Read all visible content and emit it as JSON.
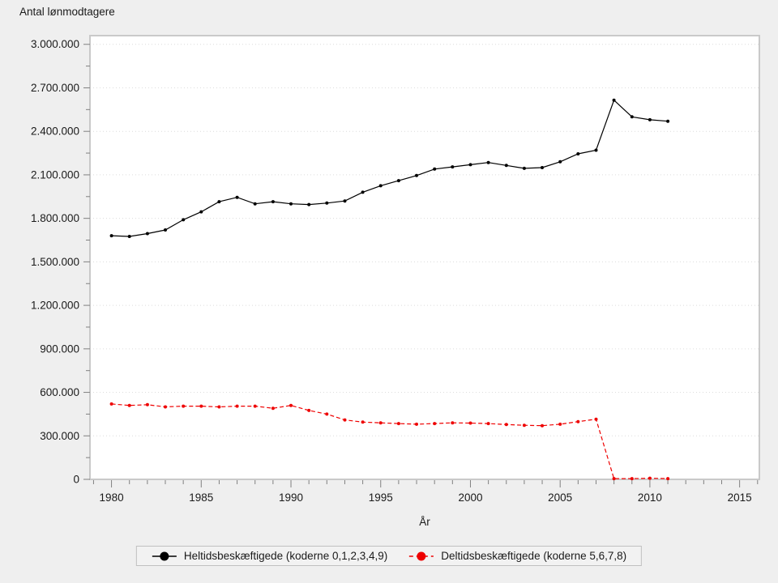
{
  "window": {
    "background": "#efefef",
    "plot_background": "#ffffff",
    "plot_border_color": "#c9c9c9",
    "gridline_color": "#dcdcdc",
    "tick_color": "#808080"
  },
  "chart_data": {
    "type": "line",
    "title": "Antal lønmodtagere",
    "xlabel": "År",
    "ylabel": "Antal lønmodtagere",
    "xlim": [
      1978.8,
      2016.1
    ],
    "ylim": [
      0,
      3060000
    ],
    "grid": "horizontal dotted lines at major y ticks only",
    "legend_position": "bottom-center",
    "x": [
      1980,
      1981,
      1982,
      1983,
      1984,
      1985,
      1986,
      1987,
      1988,
      1989,
      1990,
      1991,
      1992,
      1993,
      1994,
      1995,
      1996,
      1997,
      1998,
      1999,
      2000,
      2001,
      2002,
      2003,
      2004,
      2005,
      2006,
      2007,
      2008,
      2009,
      2010,
      2011
    ],
    "series": [
      {
        "name": "Heltidsbeskæftigede (koderne 0,1,2,3,4,9)",
        "color": "#000000",
        "line_style": "solid",
        "marker": "filled-circle",
        "values": [
          1680000,
          1675000,
          1695000,
          1720000,
          1790000,
          1845000,
          1915000,
          1945000,
          1900000,
          1915000,
          1900000,
          1895000,
          1905000,
          1920000,
          1980000,
          2025000,
          2060000,
          2095000,
          2140000,
          2155000,
          2170000,
          2185000,
          2165000,
          2145000,
          2150000,
          2190000,
          2245000,
          2270000,
          2615000,
          2500000,
          2480000,
          2470000
        ]
      },
      {
        "name": "Deltidsbeskæftigede (koderne 5,6,7,8)",
        "color": "#ee0000",
        "line_style": "dashed",
        "marker": "filled-circle",
        "values": [
          520000,
          510000,
          515000,
          500000,
          505000,
          505000,
          500000,
          505000,
          505000,
          490000,
          510000,
          475000,
          450000,
          410000,
          395000,
          390000,
          385000,
          380000,
          385000,
          390000,
          388000,
          385000,
          378000,
          373000,
          370000,
          380000,
          398000,
          415000,
          5000,
          5000,
          8000,
          5000
        ]
      }
    ],
    "y_major_ticks": [
      {
        "value": 0,
        "label": "0"
      },
      {
        "value": 300000,
        "label": "300.000"
      },
      {
        "value": 600000,
        "label": "600.000"
      },
      {
        "value": 900000,
        "label": "900.000"
      },
      {
        "value": 1200000,
        "label": "1.200.000"
      },
      {
        "value": 1500000,
        "label": "1.500.000"
      },
      {
        "value": 1800000,
        "label": "1.800.000"
      },
      {
        "value": 2100000,
        "label": "2.100.000"
      },
      {
        "value": 2400000,
        "label": "2.400.000"
      },
      {
        "value": 2700000,
        "label": "2.700.000"
      },
      {
        "value": 3000000,
        "label": "3.000.000"
      }
    ],
    "y_minor_step": 150000,
    "x_major_ticks": [
      {
        "value": 1980,
        "label": "1980"
      },
      {
        "value": 1985,
        "label": "1985"
      },
      {
        "value": 1990,
        "label": "1990"
      },
      {
        "value": 1995,
        "label": "1995"
      },
      {
        "value": 2000,
        "label": "2000"
      },
      {
        "value": 2005,
        "label": "2005"
      },
      {
        "value": 2010,
        "label": "2010"
      },
      {
        "value": 2015,
        "label": "2015"
      }
    ],
    "x_minor_step": 1
  }
}
